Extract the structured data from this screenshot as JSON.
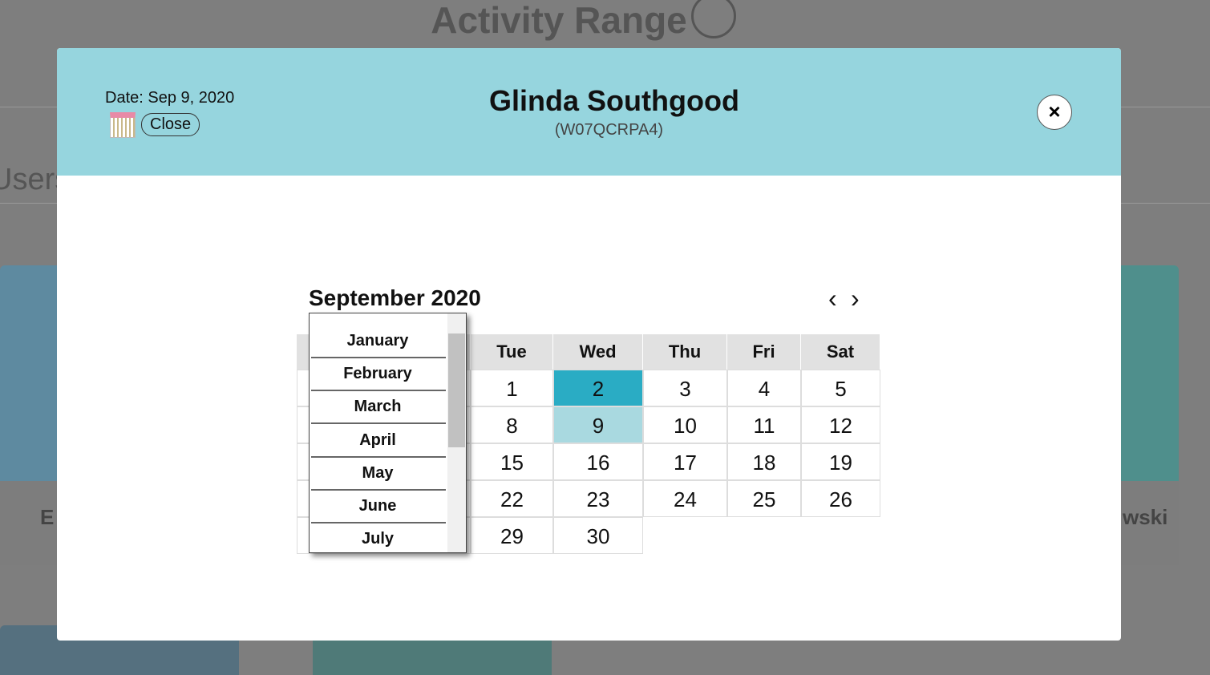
{
  "background": {
    "title": "Activity Range",
    "section": "Users",
    "card_names": [
      "E",
      "wski"
    ]
  },
  "modal": {
    "date": "Date: Sep 9, 2020",
    "close_label": "Close",
    "name": "Glinda Southgood",
    "id": "(W07QCRPA4)",
    "close_icon": "×"
  },
  "calendar": {
    "month_year": "September 2020",
    "prev": "‹",
    "next": "›",
    "weekdays": [
      "Tue",
      "Wed",
      "Thu",
      "Fri",
      "Sat"
    ],
    "weeks": [
      [
        1,
        2,
        3,
        4,
        5
      ],
      [
        8,
        9,
        10,
        11,
        12
      ],
      [
        15,
        16,
        17,
        18,
        19
      ],
      [
        22,
        23,
        24,
        25,
        26
      ],
      [
        29,
        30
      ]
    ]
  },
  "month_picker": {
    "months": [
      "January",
      "February",
      "March",
      "April",
      "May",
      "June",
      "July"
    ]
  }
}
